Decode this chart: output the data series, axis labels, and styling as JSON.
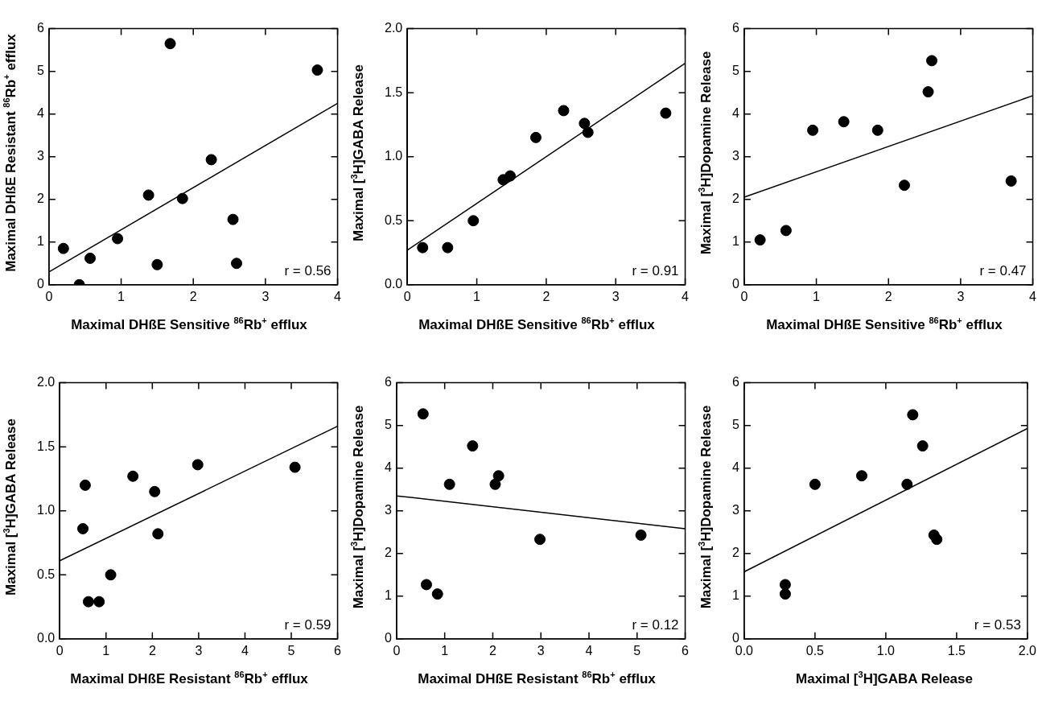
{
  "chart_data": [
    {
      "type": "scatter",
      "xlabel": "Maximal DHßE Sensitive $^{86}$Rb$^{+}$ efflux",
      "ylabel": "Maximal DHßE Resistant $^{86}$Rb$^{+}$ efflux",
      "xlim": [
        0,
        4
      ],
      "ylim": [
        0,
        6
      ],
      "xticks": [
        0,
        1,
        2,
        3,
        4
      ],
      "yticks": [
        0,
        1,
        2,
        3,
        4,
        5,
        6
      ],
      "grid": false,
      "legend": false,
      "annotations": [
        "r = 0.56"
      ],
      "series": [
        {
          "type": "scatter",
          "marker": "circle",
          "color": "#000000",
          "x": [
            0.2,
            0.42,
            0.57,
            0.95,
            1.38,
            1.5,
            1.68,
            1.85,
            2.25,
            2.55,
            2.6,
            3.72
          ],
          "values": [
            0.85,
            0,
            0.62,
            1.08,
            2.1,
            0.47,
            5.65,
            2.02,
            2.93,
            1.53,
            0.5,
            5.03
          ]
        },
        {
          "type": "line",
          "color": "#000000",
          "x": [
            0,
            4
          ],
          "values": [
            0.3,
            4.25
          ]
        }
      ]
    },
    {
      "type": "scatter",
      "xlabel": "Maximal DHßE Sensitive $^{86}$Rb$^{+}$ efflux",
      "ylabel": "Maximal [$^{3}$H]GABA Release",
      "xlim": [
        0,
        4
      ],
      "ylim": [
        0,
        2
      ],
      "xticks": [
        0,
        1,
        2,
        3,
        4
      ],
      "yticks": [
        {
          "value": 0,
          "label": "0.0"
        },
        {
          "value": 0.5,
          "label": "0.5"
        },
        {
          "value": 1,
          "label": "1.0"
        },
        {
          "value": 1.5,
          "label": "1.5"
        },
        {
          "value": 2,
          "label": "2.0"
        }
      ],
      "grid": false,
      "legend": false,
      "annotations": [
        "r = 0.91"
      ],
      "series": [
        {
          "type": "scatter",
          "marker": "circle",
          "color": "#000000",
          "x": [
            0.22,
            0.58,
            0.95,
            1.38,
            1.48,
            1.85,
            2.25,
            2.55,
            2.6,
            3.72
          ],
          "values": [
            0.29,
            0.29,
            0.5,
            0.82,
            0.85,
            1.15,
            1.36,
            1.26,
            1.19,
            1.34
          ]
        },
        {
          "type": "line",
          "color": "#000000",
          "x": [
            0,
            4
          ],
          "values": [
            0.27,
            1.73
          ]
        }
      ]
    },
    {
      "type": "scatter",
      "xlabel": "Maximal DHßE Sensitive $^{86}$Rb$^{+}$ efflux",
      "ylabel": "Maximal [$^{3}$H]Dopamine Release",
      "xlim": [
        0,
        4
      ],
      "ylim": [
        0,
        6
      ],
      "xticks": [
        0,
        1,
        2,
        3,
        4
      ],
      "yticks": [
        0,
        1,
        2,
        3,
        4,
        5,
        6
      ],
      "grid": false,
      "legend": false,
      "annotations": [
        "r = 0.47"
      ],
      "series": [
        {
          "type": "scatter",
          "marker": "circle",
          "color": "#000000",
          "x": [
            0.22,
            0.58,
            0.95,
            1.38,
            1.85,
            2.22,
            2.55,
            2.6,
            3.7
          ],
          "values": [
            1.05,
            1.27,
            3.62,
            3.82,
            3.62,
            2.33,
            4.52,
            5.25,
            2.43
          ]
        },
        {
          "type": "line",
          "color": "#000000",
          "x": [
            0,
            4
          ],
          "values": [
            2.05,
            4.43
          ]
        }
      ]
    },
    {
      "type": "scatter",
      "xlabel": "Maximal DHßE Resistant $^{86}$Rb$^{+}$ efflux",
      "ylabel": "Maximal [$^{3}$H]GABA Release",
      "xlim": [
        0,
        6
      ],
      "ylim": [
        0,
        2
      ],
      "xticks": [
        0,
        1,
        2,
        3,
        4,
        5,
        6
      ],
      "yticks": [
        {
          "value": 0,
          "label": "0.0"
        },
        {
          "value": 0.5,
          "label": "0.5"
        },
        {
          "value": 1,
          "label": "1.0"
        },
        {
          "value": 1.5,
          "label": "1.5"
        },
        {
          "value": 2,
          "label": "2.0"
        }
      ],
      "grid": false,
      "legend": false,
      "annotations": [
        "r = 0.59"
      ],
      "series": [
        {
          "type": "scatter",
          "marker": "circle",
          "color": "#000000",
          "x": [
            0.5,
            0.55,
            0.62,
            0.85,
            1.1,
            1.58,
            2.05,
            2.12,
            2.98,
            5.08
          ],
          "values": [
            0.86,
            1.2,
            0.29,
            0.29,
            0.5,
            1.27,
            1.15,
            0.82,
            1.36,
            1.34
          ]
        },
        {
          "type": "line",
          "color": "#000000",
          "x": [
            0,
            6
          ],
          "values": [
            0.61,
            1.66
          ]
        }
      ]
    },
    {
      "type": "scatter",
      "xlabel": "Maximal DHßE Resistant $^{86}$Rb$^{+}$ efflux",
      "ylabel": "Maximal [$^{3}$H]Dopamine Release",
      "xlim": [
        0,
        6
      ],
      "ylim": [
        0,
        6
      ],
      "xticks": [
        0,
        1,
        2,
        3,
        4,
        5,
        6
      ],
      "yticks": [
        0,
        1,
        2,
        3,
        4,
        5,
        6
      ],
      "grid": false,
      "legend": false,
      "annotations": [
        "r = 0.12"
      ],
      "series": [
        {
          "type": "scatter",
          "marker": "circle",
          "color": "#000000",
          "x": [
            0.55,
            0.62,
            0.85,
            1.1,
            1.58,
            2.05,
            2.12,
            2.98,
            5.08
          ],
          "values": [
            5.27,
            1.27,
            1.05,
            3.62,
            4.52,
            3.62,
            3.82,
            2.33,
            2.43
          ]
        },
        {
          "type": "line",
          "color": "#000000",
          "x": [
            0,
            6
          ],
          "values": [
            3.35,
            2.58
          ]
        }
      ]
    },
    {
      "type": "scatter",
      "xlabel": "Maximal [$^{3}$H]GABA Release",
      "ylabel": "Maximal [$^{3}$H]Dopamine Release",
      "xlim": [
        0,
        2
      ],
      "ylim": [
        0,
        6
      ],
      "xticks": [
        {
          "value": 0,
          "label": "0.0"
        },
        {
          "value": 0.5,
          "label": "0.5"
        },
        {
          "value": 1,
          "label": "1.0"
        },
        {
          "value": 1.5,
          "label": "1.5"
        },
        {
          "value": 2,
          "label": "2.0"
        }
      ],
      "yticks": [
        0,
        1,
        2,
        3,
        4,
        5,
        6
      ],
      "grid": false,
      "legend": false,
      "annotations": [
        "r = 0.53"
      ],
      "series": [
        {
          "type": "scatter",
          "marker": "circle",
          "color": "#000000",
          "x": [
            0.29,
            0.29,
            0.5,
            0.83,
            1.15,
            1.19,
            1.26,
            1.34,
            1.36
          ],
          "values": [
            1.27,
            1.05,
            3.62,
            3.82,
            3.62,
            5.25,
            4.52,
            2.43,
            2.33
          ]
        },
        {
          "type": "line",
          "color": "#000000",
          "x": [
            0,
            2
          ],
          "values": [
            1.57,
            4.93
          ]
        }
      ]
    }
  ]
}
